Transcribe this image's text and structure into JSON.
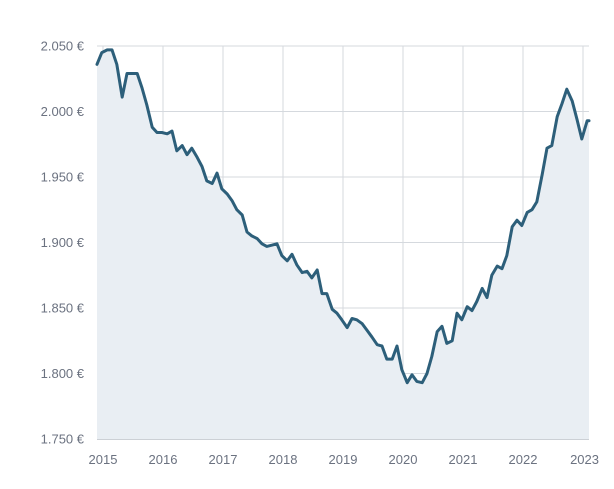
{
  "chart_data": {
    "type": "area",
    "title": "",
    "xlabel": "",
    "ylabel": "",
    "y_unit": "€",
    "ylim": [
      1750,
      2050
    ],
    "y_ticks": [
      1750,
      1800,
      1850,
      1900,
      1950,
      2000,
      2050
    ],
    "y_tick_labels": [
      "1.750 €",
      "1.800 €",
      "1.850 €",
      "1.900 €",
      "1.950 €",
      "2.000 €",
      "2.050 €"
    ],
    "xlim": [
      2014.9,
      2023.1
    ],
    "x_ticks": [
      2015,
      2016,
      2017,
      2018,
      2019,
      2020,
      2021,
      2022,
      2023
    ],
    "x_tick_labels": [
      "2015",
      "2016",
      "2017",
      "2018",
      "2019",
      "2020",
      "2021",
      "2022",
      "2023"
    ],
    "grid": true,
    "legend": "none",
    "colors": {
      "line": "#2d5f7a",
      "fill": "#e9eef3",
      "grid": "#d5d9de",
      "text": "#6b7280"
    },
    "series": [
      {
        "x": [
          2014.9,
          2014.98,
          2015.07,
          2015.15,
          2015.23,
          2015.32,
          2015.4,
          2015.48,
          2015.57,
          2015.65,
          2015.73,
          2015.82,
          2015.9,
          2015.98,
          2016.07,
          2016.15,
          2016.23,
          2016.32,
          2016.4,
          2016.48,
          2016.57,
          2016.65,
          2016.73,
          2016.82,
          2016.9,
          2016.98,
          2017.07,
          2017.15,
          2017.23,
          2017.32,
          2017.4,
          2017.48,
          2017.57,
          2017.65,
          2017.73,
          2017.82,
          2017.9,
          2017.98,
          2018.07,
          2018.15,
          2018.23,
          2018.32,
          2018.4,
          2018.48,
          2018.57,
          2018.65,
          2018.73,
          2018.82,
          2018.9,
          2018.98,
          2019.07,
          2019.15,
          2019.23,
          2019.32,
          2019.4,
          2019.48,
          2019.57,
          2019.65,
          2019.73,
          2019.82,
          2019.9,
          2019.98,
          2020.07,
          2020.15,
          2020.23,
          2020.32,
          2020.4,
          2020.48,
          2020.57,
          2020.65,
          2020.73,
          2020.82,
          2020.9,
          2020.98,
          2021.07,
          2021.15,
          2021.23,
          2021.32,
          2021.4,
          2021.48,
          2021.57,
          2021.65,
          2021.73,
          2021.82,
          2021.9,
          2021.98,
          2022.07,
          2022.15,
          2022.23,
          2022.32,
          2022.4,
          2022.48,
          2022.57,
          2022.65,
          2022.73,
          2022.82,
          2022.9,
          2022.98,
          2023.07,
          2023.1
        ],
        "values": [
          2036,
          2045,
          2047,
          2047,
          2036,
          2011,
          2029,
          2029,
          2029,
          2018,
          2005,
          1988,
          1984,
          1984,
          1983,
          1985,
          1970,
          1974,
          1967,
          1972,
          1965,
          1958,
          1947,
          1945,
          1953,
          1941,
          1937,
          1932,
          1925,
          1921,
          1908,
          1905,
          1903,
          1899,
          1897,
          1898,
          1899,
          1890,
          1886,
          1891,
          1883,
          1877,
          1878,
          1873,
          1879,
          1861,
          1861,
          1849,
          1846,
          1841,
          1835,
          1842,
          1841,
          1838,
          1833,
          1828,
          1822,
          1821,
          1811,
          1811,
          1821,
          1803,
          1793,
          1799,
          1794,
          1793,
          1800,
          1813,
          1832,
          1836,
          1823,
          1825,
          1846,
          1841,
          1851,
          1848,
          1855,
          1865,
          1858,
          1875,
          1882,
          1880,
          1890,
          1912,
          1917,
          1913,
          1923,
          1925,
          1931,
          1952,
          1972,
          1974,
          1996,
          2006,
          2017,
          2008,
          1994,
          1979,
          1993,
          1993
        ]
      }
    ]
  }
}
